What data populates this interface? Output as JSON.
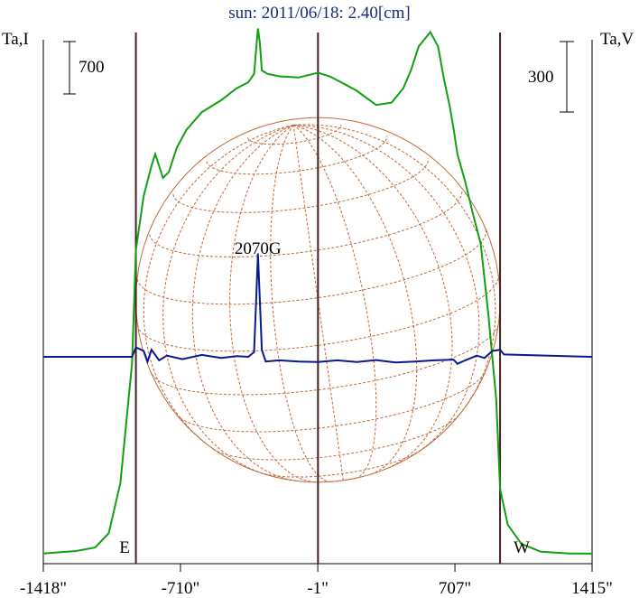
{
  "chart_data": {
    "type": "line",
    "title": "sun: 2011/06/18: 2.40[cm]",
    "left_axis_label": "Ta,I",
    "right_axis_label": "Ta,V",
    "left_scale_bar": "700",
    "right_scale_bar": "300",
    "x_tick_labels": [
      "-1418\"",
      "-710\"",
      "-1\"",
      "707\"",
      "1415\""
    ],
    "x_ticks": [
      -1418,
      -710,
      -1,
      707,
      1415
    ],
    "xlim": [
      -1418,
      1415
    ],
    "limb_labels": {
      "east": "E",
      "west": "W"
    },
    "limb_positions": [
      -940,
      940
    ],
    "annotation": {
      "text": "2070G",
      "x": -310
    },
    "disk": {
      "center_x": 0,
      "radius": 940
    },
    "grid": false,
    "colors": {
      "intensity": "#10a010",
      "polarization": "#0a1a8c",
      "disk_grid": "#c06a3a",
      "verticals": "#4a1f1f",
      "title": "#1b2a7a"
    },
    "series": [
      {
        "name": "Ta,I",
        "unit_per_scale_bar": 700,
        "baseline_ylim": [
          0,
          4200
        ],
        "x": [
          -1418,
          -1250,
          -1150,
          -1080,
          -1020,
          -960,
          -940,
          -900,
          -860,
          -840,
          -800,
          -770,
          -730,
          -680,
          -600,
          -500,
          -420,
          -360,
          -330,
          -310,
          -300,
          -290,
          -260,
          -200,
          -100,
          0,
          60,
          120,
          200,
          300,
          380,
          440,
          480,
          520,
          580,
          620,
          650,
          680,
          700,
          720,
          760,
          800,
          840,
          880,
          920,
          940,
          980,
          1050,
          1150,
          1300,
          1415
        ],
        "values": [
          10,
          30,
          60,
          180,
          600,
          1600,
          2550,
          3000,
          3250,
          3350,
          3150,
          3200,
          3400,
          3550,
          3700,
          3800,
          3900,
          3950,
          4020,
          4400,
          4280,
          4050,
          4020,
          4000,
          3990,
          4030,
          4000,
          3950,
          3880,
          3760,
          3780,
          3900,
          4050,
          4250,
          4370,
          4250,
          3980,
          3750,
          3560,
          3350,
          3120,
          2850,
          2600,
          2000,
          1300,
          550,
          250,
          90,
          25,
          10,
          8
        ]
      },
      {
        "name": "Ta,V",
        "unit_per_scale_bar": 300,
        "baseline_ylim": [
          -700,
          700
        ],
        "x": [
          -1418,
          -960,
          -940,
          -900,
          -880,
          -860,
          -820,
          -780,
          -700,
          -600,
          -500,
          -420,
          -360,
          -330,
          -320,
          -310,
          -300,
          -290,
          -270,
          -200,
          -100,
          0,
          100,
          200,
          300,
          400,
          500,
          600,
          700,
          720,
          760,
          820,
          860,
          900,
          940,
          960,
          1415
        ],
        "values": [
          0,
          0,
          40,
          25,
          -20,
          30,
          -15,
          5,
          -10,
          8,
          -5,
          3,
          0,
          20,
          220,
          440,
          240,
          30,
          -20,
          -15,
          -20,
          -22,
          -15,
          -22,
          -14,
          -24,
          -20,
          -15,
          -12,
          -30,
          -15,
          5,
          -5,
          25,
          30,
          10,
          0
        ]
      }
    ]
  }
}
